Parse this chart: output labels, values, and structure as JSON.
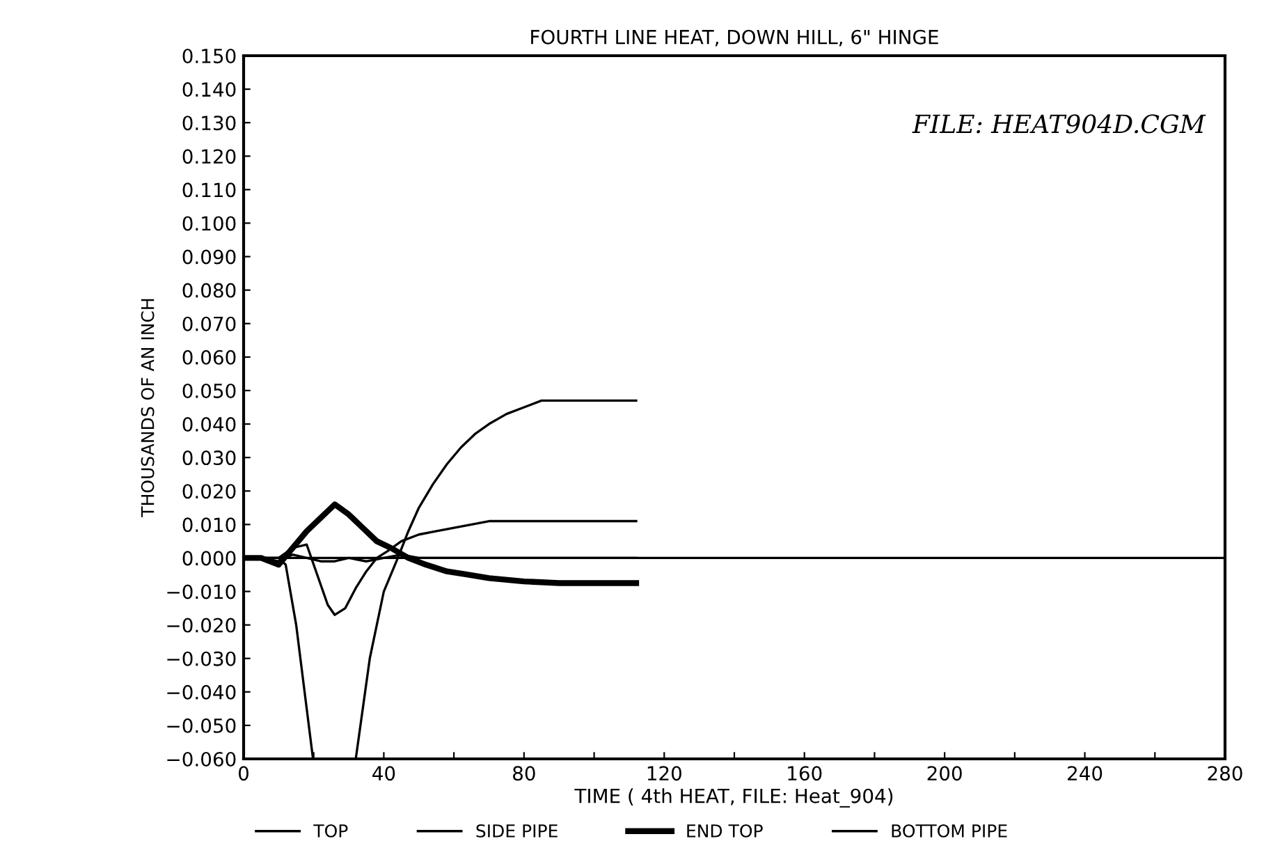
{
  "chart_data": {
    "type": "line",
    "title": "FOURTH LINE HEAT, DOWN HILL, 6\" HINGE",
    "xlabel": "TIME ( 4th HEAT, FILE: Heat_904)",
    "ylabel": "THOUSANDS OF AN INCH",
    "annotations": [
      "FILE: HEAT904D.CGM"
    ],
    "xlim": [
      0,
      280
    ],
    "xticks": [
      0,
      {
        "value": 20,
        "label": null
      },
      40,
      {
        "value": 60,
        "label": null
      },
      80,
      {
        "value": 100,
        "label": null
      },
      120,
      {
        "value": 140,
        "label": null
      },
      160,
      {
        "value": 180,
        "label": null
      },
      200,
      {
        "value": 220,
        "label": null
      },
      240,
      {
        "value": 260,
        "label": null
      },
      280
    ],
    "ylim": [
      -0.06,
      0.15
    ],
    "yticks": [
      {
        "value": -0.06,
        "label": "−0.060"
      },
      {
        "value": -0.05,
        "label": "−0.050"
      },
      {
        "value": -0.04,
        "label": "−0.040"
      },
      {
        "value": -0.03,
        "label": "−0.030"
      },
      {
        "value": -0.02,
        "label": "−0.020"
      },
      {
        "value": -0.01,
        "label": "−0.010"
      },
      {
        "value": 0,
        "label": "0.000"
      },
      {
        "value": 0.01,
        "label": "0.010"
      },
      {
        "value": 0.02,
        "label": "0.020"
      },
      {
        "value": 0.03,
        "label": "0.030"
      },
      {
        "value": 0.04,
        "label": "0.040"
      },
      {
        "value": 0.05,
        "label": "0.050"
      },
      {
        "value": 0.06,
        "label": "0.060"
      },
      {
        "value": 0.07,
        "label": "0.070"
      },
      {
        "value": 0.08,
        "label": "0.080"
      },
      {
        "value": 0.09,
        "label": "0.090"
      },
      {
        "value": 0.1,
        "label": "0.100"
      },
      {
        "value": 0.11,
        "label": "0.110"
      },
      {
        "value": 0.12,
        "label": "0.120"
      },
      {
        "value": 0.13,
        "label": "0.130"
      },
      {
        "value": 0.14,
        "label": "0.140"
      },
      {
        "value": 0.15,
        "label": "0.150"
      }
    ],
    "ref_lines": [
      {
        "axis": "y",
        "value": 0,
        "color": "#000000"
      }
    ],
    "legend": "bottom",
    "grid": false,
    "series": [
      {
        "name": "TOP",
        "color": "#000000",
        "x": [
          0,
          5,
          10,
          14,
          18,
          22,
          26,
          30,
          35,
          40,
          45,
          50,
          60,
          70,
          80,
          90,
          100,
          112
        ],
        "values": [
          0,
          0,
          -0.001,
          0.001,
          0.0,
          -0.001,
          -0.001,
          0,
          -0.001,
          0,
          0.001,
          0,
          0,
          0,
          0,
          0,
          0,
          0
        ]
      },
      {
        "name": "SIDE PIPE",
        "color": "#000000",
        "x": [
          0,
          5,
          10,
          14,
          18,
          21,
          24,
          26,
          29,
          32,
          35,
          38,
          41,
          45,
          50,
          55,
          60,
          65,
          70,
          80,
          90,
          100,
          112
        ],
        "values": [
          0,
          0,
          0,
          0.003,
          0.004,
          -0.005,
          -0.014,
          -0.017,
          -0.015,
          -0.009,
          -0.004,
          0,
          0.002,
          0.005,
          0.007,
          0.008,
          0.009,
          0.01,
          0.011,
          0.011,
          0.011,
          0.011,
          0.011
        ]
      },
      {
        "name": "END TOP",
        "color": "#000000",
        "x": [
          0,
          5,
          10,
          14,
          18,
          22,
          26,
          30,
          34,
          38,
          42,
          47,
          52,
          58,
          64,
          70,
          80,
          90,
          100,
          112
        ],
        "values": [
          0,
          0,
          -0.002,
          0.003,
          0.008,
          0.012,
          0.016,
          0.013,
          0.009,
          0.005,
          0.003,
          0,
          -0.002,
          -0.004,
          -0.005,
          -0.006,
          -0.007,
          -0.0075,
          -0.0075,
          -0.0075
        ]
      },
      {
        "name": "BOTTOM PIPE",
        "color": "#000000",
        "x": [
          0,
          5,
          10,
          12,
          15,
          18,
          19.8,
          25,
          32,
          36,
          40,
          44,
          47,
          50,
          54,
          58,
          62,
          66,
          70,
          75,
          80,
          85,
          90,
          100,
          112
        ],
        "values": [
          0,
          0,
          0,
          -0.002,
          -0.02,
          -0.045,
          -0.06,
          null,
          -0.06,
          -0.03,
          -0.01,
          0,
          0.008,
          0.015,
          0.022,
          0.028,
          0.033,
          0.037,
          0.04,
          0.043,
          0.045,
          0.047,
          0.047,
          0.047,
          0.047
        ]
      }
    ]
  }
}
